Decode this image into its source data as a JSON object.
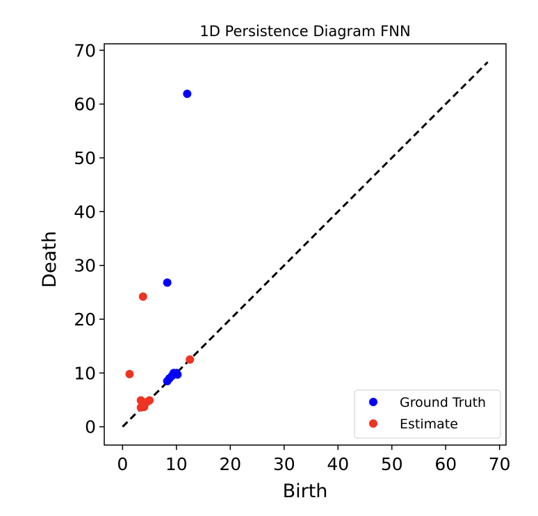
{
  "chart_data": {
    "type": "scatter",
    "title": "1D Persistence Diagram FNN",
    "xlabel": "Birth",
    "ylabel": "Death",
    "xlim": [
      -3.4,
      71.2
    ],
    "ylim": [
      -3.4,
      71.2
    ],
    "xticks": [
      0,
      10,
      20,
      30,
      40,
      50,
      60,
      70
    ],
    "yticks": [
      0,
      10,
      20,
      30,
      40,
      50,
      60,
      70
    ],
    "diagonal": {
      "from": [
        0,
        0
      ],
      "to": [
        67.8,
        67.8
      ],
      "style": "dashed",
      "color": "#000000"
    },
    "grid": false,
    "legend": {
      "position": "lower-right"
    },
    "series": [
      {
        "name": "Ground Truth",
        "color": "#0000ff",
        "points": [
          [
            12.0,
            61.9
          ],
          [
            8.3,
            26.8
          ],
          [
            8.3,
            8.5
          ],
          [
            8.7,
            9.0
          ],
          [
            9.2,
            9.5
          ],
          [
            9.5,
            10.0
          ],
          [
            10.0,
            10.0
          ],
          [
            10.2,
            9.7
          ]
        ]
      },
      {
        "name": "Estimate",
        "color": "#ee3322",
        "points": [
          [
            3.8,
            24.2
          ],
          [
            1.3,
            9.8
          ],
          [
            12.5,
            12.5
          ],
          [
            3.4,
            4.9
          ],
          [
            3.4,
            3.6
          ],
          [
            4.0,
            3.7
          ],
          [
            4.5,
            4.6
          ],
          [
            5.0,
            4.9
          ]
        ]
      }
    ]
  }
}
